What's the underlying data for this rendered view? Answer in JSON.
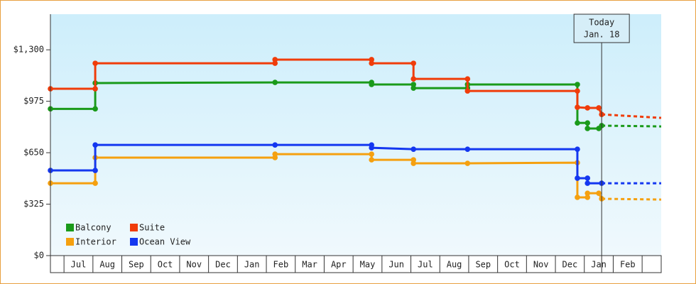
{
  "chart_data": {
    "type": "step-line",
    "xlim": [
      -0.47,
      20.66
    ],
    "xticks": [
      {
        "value": 0.5,
        "label": "Jul"
      },
      {
        "value": 1.5,
        "label": "Aug"
      },
      {
        "value": 2.5,
        "label": "Sep"
      },
      {
        "value": 3.5,
        "label": "Oct"
      },
      {
        "value": 4.5,
        "label": "Nov"
      },
      {
        "value": 5.5,
        "label": "Dec"
      },
      {
        "value": 6.5,
        "label": "Jan"
      },
      {
        "value": 7.5,
        "label": "Feb"
      },
      {
        "value": 8.5,
        "label": "Mar"
      },
      {
        "value": 9.5,
        "label": "Apr"
      },
      {
        "value": 10.5,
        "label": "May"
      },
      {
        "value": 11.5,
        "label": "Jun"
      },
      {
        "value": 12.5,
        "label": "Jul"
      },
      {
        "value": 13.5,
        "label": "Aug"
      },
      {
        "value": 14.5,
        "label": "Sep"
      },
      {
        "value": 15.5,
        "label": "Oct"
      },
      {
        "value": 16.5,
        "label": "Nov"
      },
      {
        "value": 17.5,
        "label": "Dec"
      },
      {
        "value": 18.5,
        "label": "Jan"
      },
      {
        "value": 19.5,
        "label": "Feb"
      }
    ],
    "ylim": [
      0,
      1525
    ],
    "yticks": [
      {
        "value": 0,
        "label": "$0"
      },
      {
        "value": 325,
        "label": "$325"
      },
      {
        "value": 650,
        "label": "$650"
      },
      {
        "value": 975,
        "label": "$975"
      },
      {
        "value": 1300,
        "label": "$1,300"
      }
    ],
    "today": {
      "x": 18.6,
      "label": [
        "Today",
        "Jan. 18"
      ]
    },
    "series": [
      {
        "name": "Balcony",
        "color": "#1a9a1a",
        "x": [
          -0.47,
          1.08,
          1.08,
          7.3,
          10.64,
          10.64,
          12.09,
          12.09,
          13.96,
          13.96,
          17.76,
          17.76,
          18.11,
          18.11,
          18.5,
          18.6,
          20.66
        ],
        "values": [
          927,
          927,
          1090,
          1094,
          1094,
          1081,
          1081,
          1058,
          1058,
          1081,
          1081,
          838,
          838,
          803,
          803,
          821,
          816
        ]
      },
      {
        "name": "Suite",
        "color": "#f03c0a",
        "x": [
          -0.47,
          1.08,
          1.08,
          7.3,
          7.3,
          10.64,
          10.64,
          12.09,
          12.09,
          13.96,
          13.96,
          17.76,
          17.76,
          18.11,
          18.5,
          18.6,
          20.66
        ],
        "values": [
          1054,
          1054,
          1215,
          1215,
          1238,
          1238,
          1215,
          1215,
          1116,
          1116,
          1040,
          1040,
          937,
          933,
          933,
          892,
          870
        ]
      },
      {
        "name": "Interior",
        "color": "#f5a00f",
        "x": [
          -0.47,
          1.08,
          1.08,
          7.3,
          7.3,
          10.64,
          10.64,
          12.09,
          12.09,
          13.96,
          17.76,
          17.76,
          18.11,
          18.11,
          18.5,
          18.6,
          20.66
        ],
        "values": [
          457,
          457,
          619,
          619,
          641,
          641,
          605,
          605,
          583,
          583,
          587,
          368,
          368,
          394,
          394,
          359,
          354
        ]
      },
      {
        "name": "Ocean View",
        "color": "#1437f0",
        "x": [
          -0.47,
          1.08,
          1.08,
          7.3,
          10.64,
          10.64,
          12.09,
          13.96,
          17.76,
          17.76,
          18.11,
          18.11,
          18.6,
          20.66
        ],
        "values": [
          538,
          538,
          699,
          699,
          699,
          681,
          672,
          672,
          672,
          489,
          489,
          457,
          457,
          457
        ]
      }
    ]
  }
}
